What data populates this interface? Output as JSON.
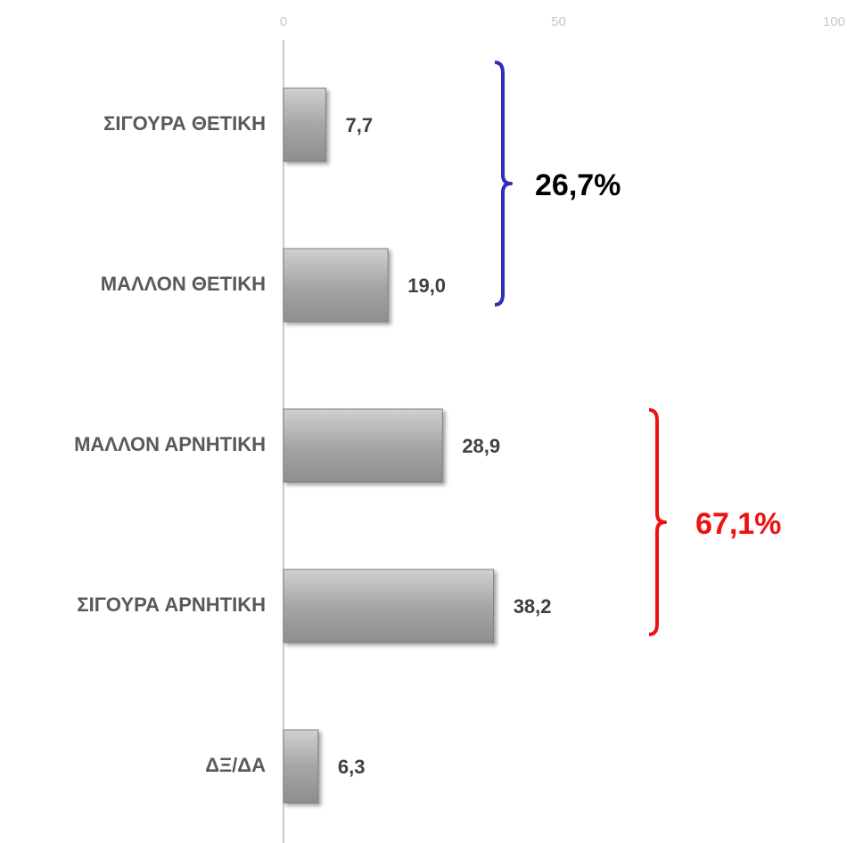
{
  "chart_data": {
    "type": "barh",
    "categories": [
      "ΣΙΓΟΥΡΑ ΘΕΤΙΚΗ",
      "ΜΑΛΛΟΝ ΘΕΤΙΚΗ",
      "ΜΑΛΛΟΝ ΑΡΝΗΤΙΚΗ",
      "ΣΙΓΟΥΡΑ ΑΡΝΗΤΙΚΗ",
      "ΔΞ/ΔΑ"
    ],
    "values": [
      7.7,
      19.0,
      28.9,
      38.2,
      6.3
    ],
    "value_labels": [
      "7,7",
      "19,0",
      "28,9",
      "38,2",
      "6,3"
    ],
    "color": "#a6a6a6",
    "xlim": [
      0,
      100
    ],
    "xticks": [
      0,
      50,
      100
    ],
    "grid": false,
    "annotations": [
      {
        "text": "26,7%",
        "color": "#000000",
        "brace_color": "#2e2eb8"
      },
      {
        "text": "67,1%",
        "color": "#ee1111",
        "brace_color": "#ee1111"
      }
    ]
  }
}
